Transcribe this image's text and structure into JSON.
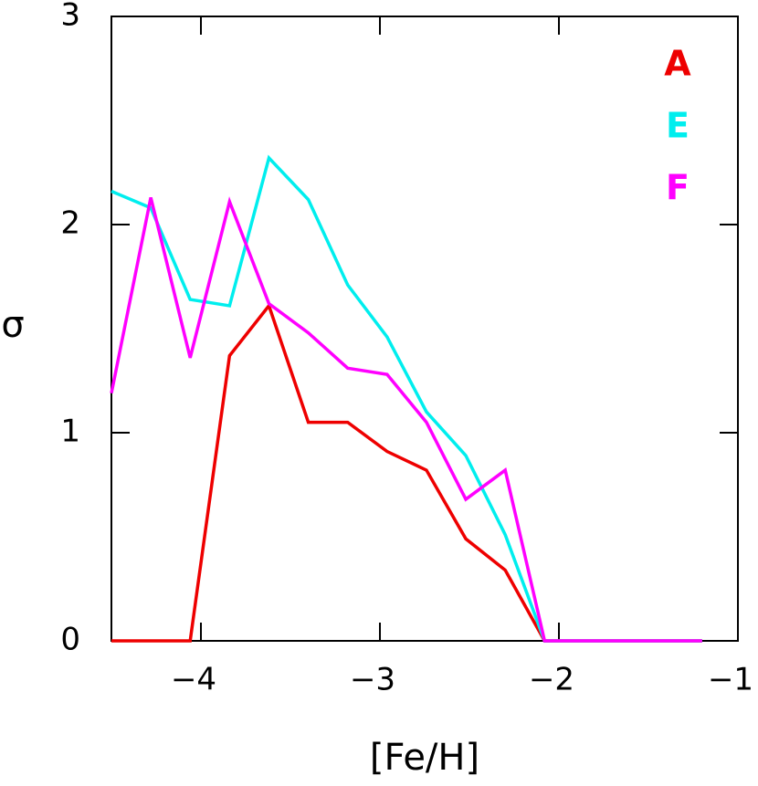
{
  "chart_data": {
    "type": "line",
    "x_label": "[Fe/H]",
    "y_label": "σ",
    "x": [
      -4.5,
      -4.28,
      -4.06,
      -3.84,
      -3.62,
      -3.4,
      -3.18,
      -2.96,
      -2.74,
      -2.52,
      -2.3,
      -2.08,
      -1.86,
      -1.64,
      -1.42,
      -1.2
    ],
    "series": [
      {
        "name": "A",
        "color": "#ee0000",
        "values": [
          0,
          0,
          0,
          1.37,
          1.61,
          1.05,
          1.05,
          0.91,
          0.82,
          0.49,
          0.34,
          0,
          0,
          0,
          0,
          0
        ]
      },
      {
        "name": "E",
        "color": "#00eeee",
        "values": [
          2.16,
          2.08,
          1.64,
          1.61,
          2.32,
          2.12,
          1.71,
          1.46,
          1.1,
          0.89,
          0.51,
          0,
          0,
          0,
          0,
          0
        ]
      },
      {
        "name": "F",
        "color": "#ff00ff",
        "values": [
          1.19,
          2.13,
          1.36,
          2.11,
          1.62,
          1.48,
          1.31,
          1.28,
          1.05,
          0.68,
          0.82,
          0,
          0,
          0,
          0,
          0
        ]
      }
    ],
    "xlim": [
      -4.5,
      -1
    ],
    "ylim": [
      0,
      3
    ],
    "xticks": [
      {
        "value": -4,
        "label": "−4"
      },
      {
        "value": -3,
        "label": "−3"
      },
      {
        "value": -2,
        "label": "−2"
      },
      {
        "value": -1,
        "label": "−1"
      }
    ],
    "yticks": [
      0,
      1,
      2,
      3
    ],
    "legend": "top-right"
  }
}
